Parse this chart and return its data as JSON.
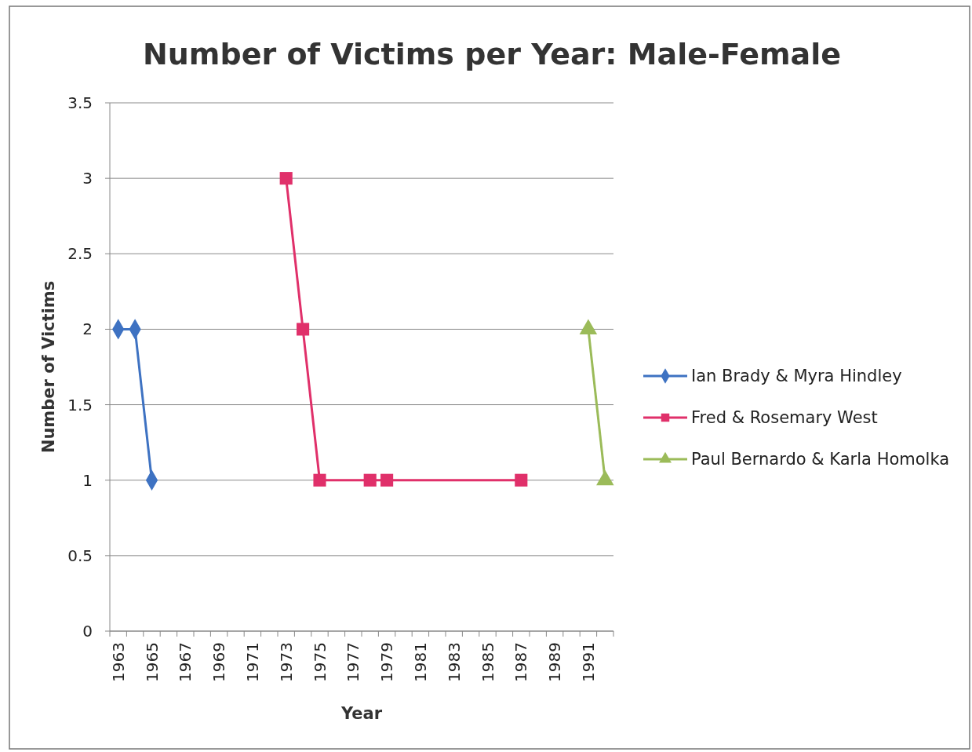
{
  "chart_data": {
    "type": "line",
    "title": "Number of Victims per Year: Male-Female",
    "xlabel": "Year",
    "ylabel": "Number of Victims",
    "categories": [
      "1963",
      null,
      "1965",
      null,
      "1967",
      null,
      "1969",
      null,
      "1971",
      null,
      "1973",
      null,
      "1975",
      null,
      "1977",
      null,
      "1979",
      null,
      "1981",
      null,
      "1983",
      null,
      "1985",
      null,
      "1987",
      null,
      "1989",
      null,
      "1991",
      null
    ],
    "series": [
      {
        "name": "Ian Brady & Myra Hindley",
        "color": "#3e72c2",
        "marker": "diamond",
        "values": [
          2,
          2,
          1,
          null,
          null,
          null,
          null,
          null,
          null,
          null,
          null,
          null,
          null,
          null,
          null,
          null,
          null,
          null,
          null,
          null,
          null,
          null,
          null,
          null,
          null,
          null,
          null,
          null,
          null,
          null
        ]
      },
      {
        "name": "Fred & Rosemary West",
        "color": "#e0306a",
        "marker": "square",
        "values": [
          null,
          null,
          null,
          null,
          null,
          null,
          null,
          null,
          null,
          null,
          3,
          2,
          1,
          null,
          null,
          1,
          1,
          null,
          null,
          null,
          null,
          null,
          null,
          null,
          1,
          null,
          null,
          null,
          null,
          null
        ]
      },
      {
        "name": "Paul Bernardo & Karla Homolka",
        "color": "#9bbb59",
        "marker": "triangle",
        "values": [
          null,
          null,
          null,
          null,
          null,
          null,
          null,
          null,
          null,
          null,
          null,
          null,
          null,
          null,
          null,
          null,
          null,
          null,
          null,
          null,
          null,
          null,
          null,
          null,
          null,
          null,
          null,
          null,
          2,
          1
        ]
      }
    ],
    "ylim": [
      0,
      3.5
    ],
    "yticks": [
      0,
      0.5,
      1,
      1.5,
      2,
      2.5,
      3,
      3.5
    ],
    "grid": "y",
    "legend": "right"
  }
}
